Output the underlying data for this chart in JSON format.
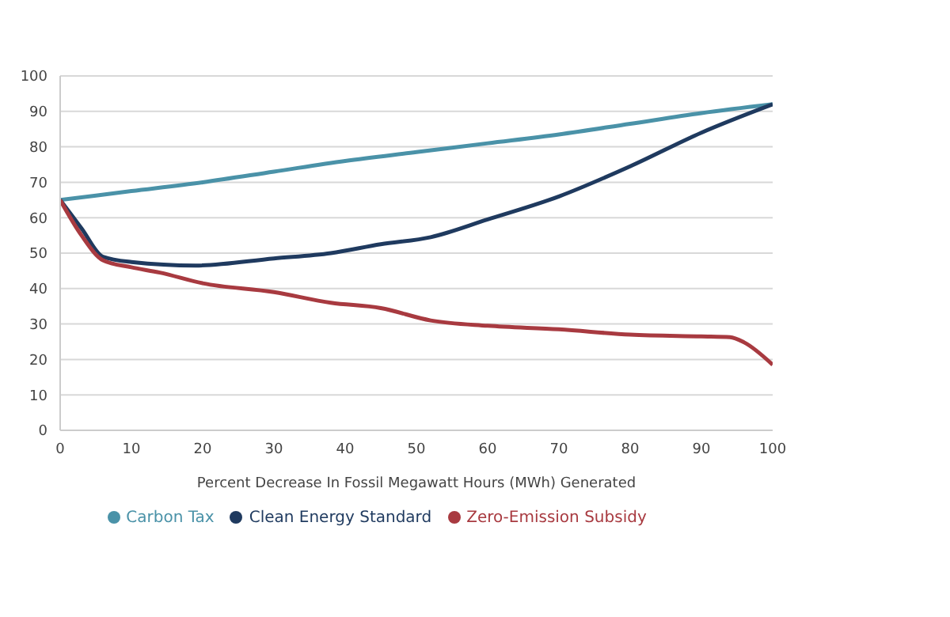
{
  "chart_data": {
    "type": "line",
    "xlabel": "Percent Decrease In Fossil Megawatt Hours (MWh) Generated",
    "xlim": [
      0,
      100
    ],
    "xticks": [
      0,
      10,
      20,
      30,
      40,
      50,
      60,
      70,
      80,
      90,
      100
    ],
    "ylim": [
      0,
      100
    ],
    "yticks": [
      0,
      10,
      20,
      30,
      40,
      50,
      60,
      70,
      80,
      90,
      100
    ],
    "grid": "y",
    "legend": "bottom",
    "marker": "none",
    "line_style": "solid",
    "series": [
      {
        "name": "Carbon Tax",
        "color": "#4a92a8",
        "x": [
          0,
          10,
          20,
          30,
          40,
          50,
          60,
          70,
          80,
          90,
          100
        ],
        "values": [
          65,
          67.5,
          70,
          73,
          76,
          78.5,
          81,
          83.5,
          86.5,
          89.5,
          92
        ]
      },
      {
        "name": "Clean Energy Standard",
        "color": "#1f3a5f",
        "x": [
          0,
          3,
          6,
          10,
          19,
          30,
          38,
          45,
          52,
          60,
          70,
          80,
          90,
          100
        ],
        "values": [
          65,
          57,
          49,
          47.5,
          46.5,
          48.5,
          50,
          52.5,
          54.5,
          59.5,
          66,
          74.5,
          84,
          92
        ]
      },
      {
        "name": "Zero-Emission Subsidy",
        "color": "#a83a40",
        "x": [
          0,
          3,
          6,
          10,
          14,
          20,
          30,
          38,
          45,
          52,
          60,
          70,
          80,
          90,
          94,
          96,
          100
        ],
        "values": [
          65,
          55,
          48,
          46,
          44.5,
          41.5,
          39,
          36,
          34.5,
          31,
          29.5,
          28.5,
          27,
          26.5,
          26.3,
          24.8,
          18.5
        ]
      }
    ]
  }
}
